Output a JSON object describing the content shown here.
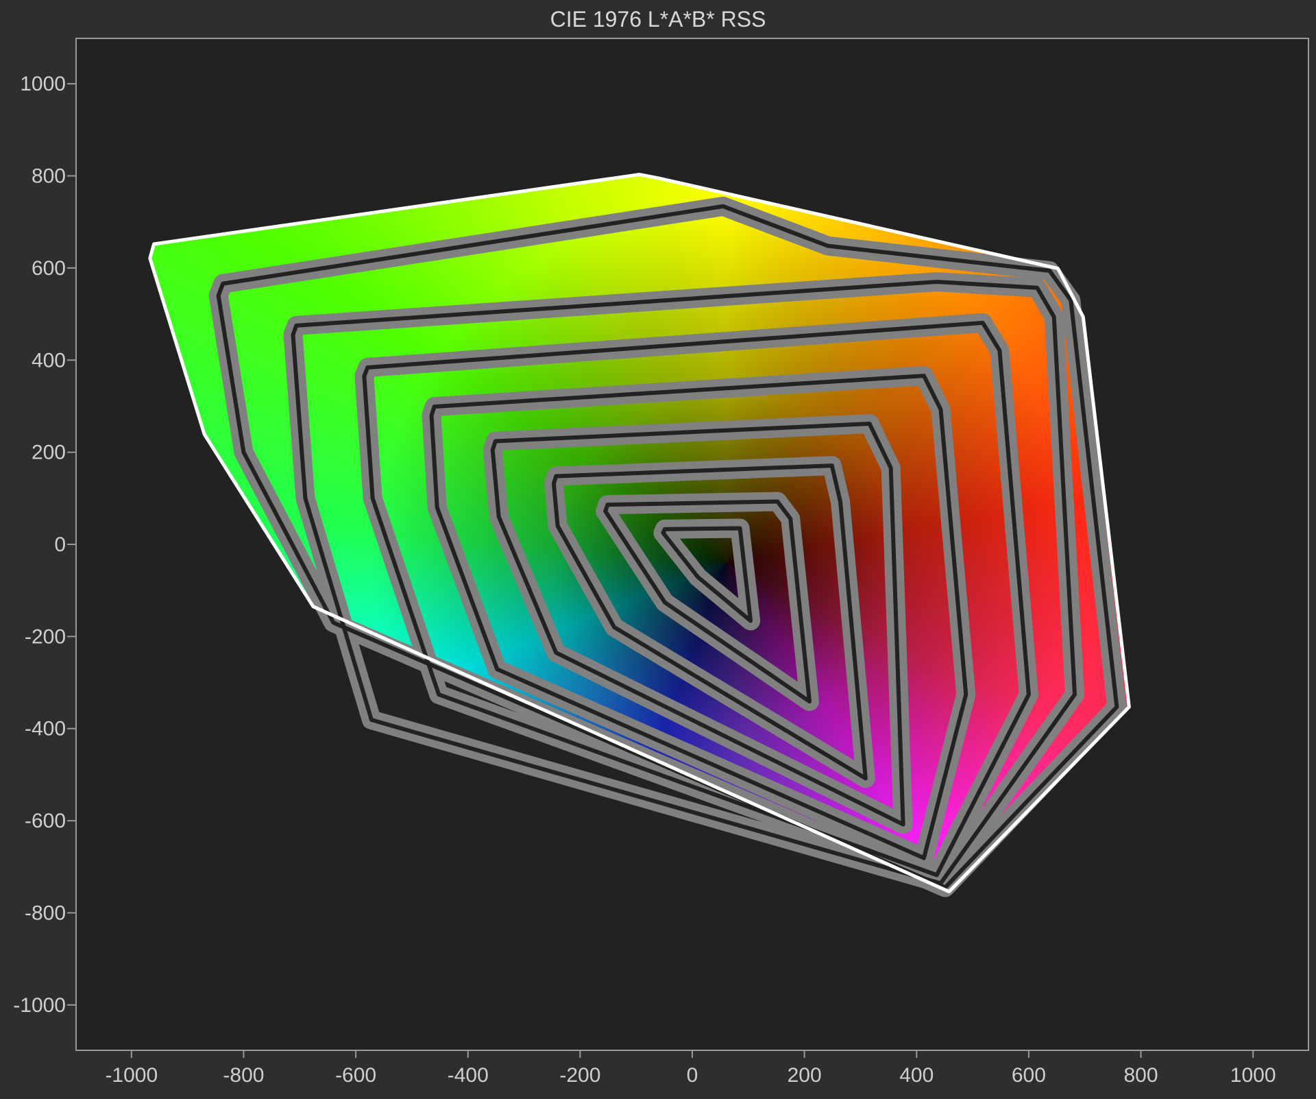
{
  "chart_data": {
    "type": "area",
    "title": "CIE 1976 L*A*B* RSS",
    "xlabel": "",
    "ylabel": "",
    "xlim": [
      -1100,
      1100
    ],
    "ylim": [
      -1100,
      1100
    ],
    "x_ticks": [
      "-1000",
      "-800",
      "-600",
      "-400",
      "-200",
      "0",
      "200",
      "400",
      "600",
      "800",
      "1000"
    ],
    "y_ticks": [
      "1000",
      "800",
      "600",
      "400",
      "200",
      "0",
      "-200",
      "-400",
      "-600",
      "-800",
      "-1000"
    ],
    "grid": false,
    "legend": "none",
    "outline_color": "#ffffff",
    "contour_color": "#222222",
    "band_color": "#808080",
    "contours": [
      [
        [
          -960,
          652
        ],
        [
          -94,
          803
        ],
        [
          -60,
          795
        ],
        [
          652,
          599
        ],
        [
          697,
          494
        ],
        [
          779,
          -353
        ],
        [
          458,
          -754
        ],
        [
          -676,
          -135
        ],
        [
          -870,
          239
        ],
        [
          -967,
          621
        ]
      ],
      [
        [
          -837,
          566
        ],
        [
          55,
          734
        ],
        [
          242,
          648
        ],
        [
          637,
          594
        ],
        [
          675,
          530
        ],
        [
          757,
          -353
        ],
        [
          451,
          -745
        ],
        [
          -640,
          -170
        ],
        [
          -800,
          200
        ],
        [
          -845,
          540
        ]
      ],
      [
        [
          -706,
          475
        ],
        [
          436,
          570
        ],
        [
          615,
          557
        ],
        [
          645,
          494
        ],
        [
          682,
          -326
        ],
        [
          443,
          -736
        ],
        [
          -572,
          -381
        ],
        [
          -690,
          100
        ],
        [
          -712,
          455
        ]
      ],
      [
        [
          -579,
          384
        ],
        [
          518,
          481
        ],
        [
          548,
          421
        ],
        [
          600,
          -326
        ],
        [
          436,
          -718
        ],
        [
          -452,
          -326
        ],
        [
          -570,
          100
        ],
        [
          -585,
          365
        ]
      ],
      [
        [
          -460,
          299
        ],
        [
          413,
          366
        ],
        [
          443,
          293
        ],
        [
          488,
          -326
        ],
        [
          413,
          -681
        ],
        [
          -348,
          -271
        ],
        [
          -455,
          80
        ],
        [
          -465,
          280
        ]
      ],
      [
        [
          -351,
          224
        ],
        [
          316,
          262
        ],
        [
          354,
          166
        ],
        [
          376,
          -608
        ],
        [
          -243,
          -235
        ],
        [
          -345,
          60
        ],
        [
          -356,
          205
        ]
      ],
      [
        [
          -243,
          148
        ],
        [
          249,
          171
        ],
        [
          264,
          93
        ],
        [
          309,
          -508
        ],
        [
          -139,
          -180
        ],
        [
          -240,
          40
        ],
        [
          -247,
          132
        ]
      ],
      [
        [
          -151,
          86
        ],
        [
          152,
          93
        ],
        [
          175,
          56
        ],
        [
          209,
          -341
        ],
        [
          -49,
          -126
        ],
        [
          -155,
          72
        ]
      ],
      [
        [
          -49,
          33
        ],
        [
          85,
          35
        ],
        [
          104,
          -166
        ],
        [
          10,
          -71
        ],
        [
          -52,
          25
        ]
      ]
    ]
  }
}
